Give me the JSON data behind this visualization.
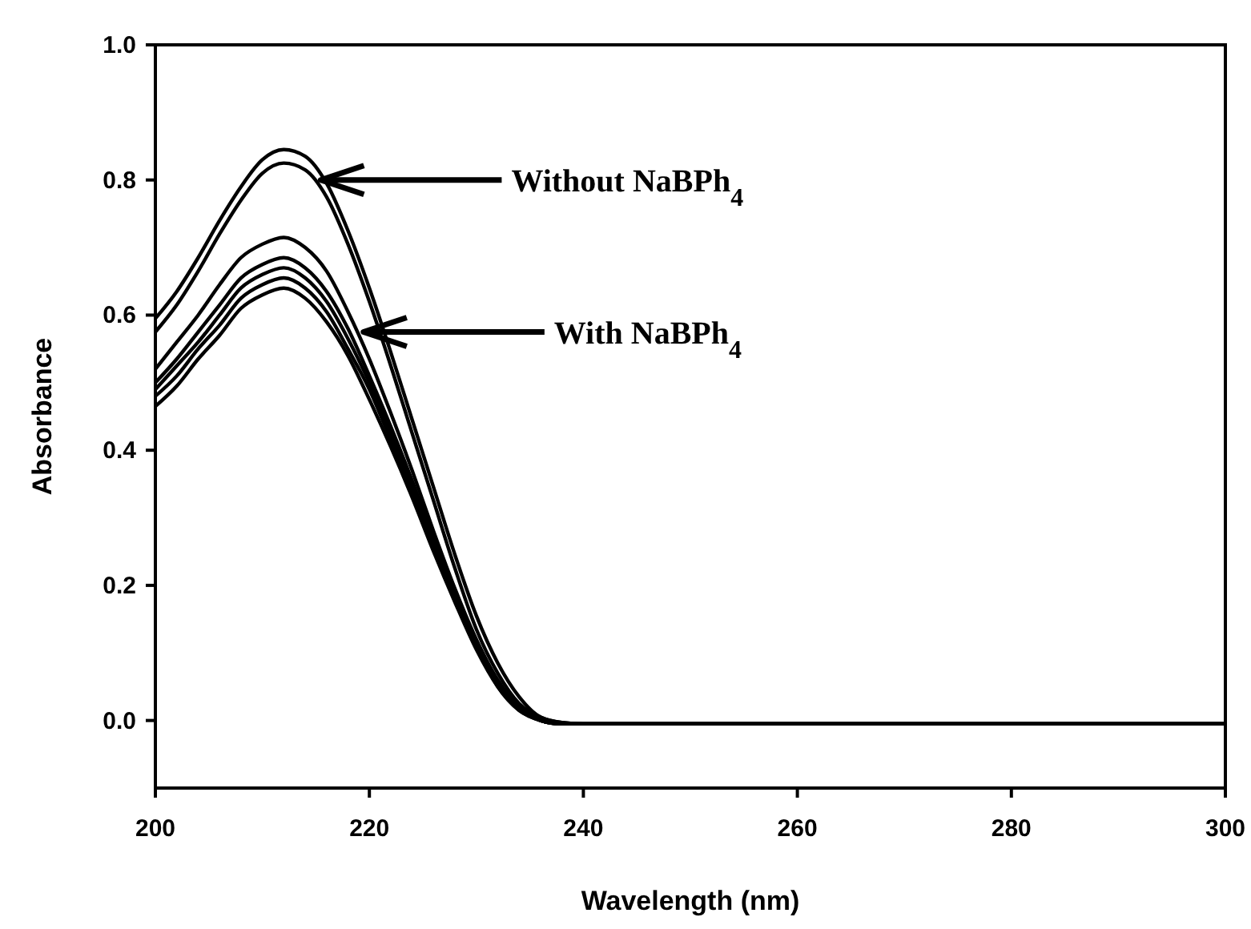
{
  "chart_data": {
    "type": "line",
    "xlabel": "Wavelength (nm)",
    "ylabel": "Absorbance",
    "x": [
      200,
      202,
      204,
      206,
      208,
      210,
      212,
      214,
      216,
      218,
      220,
      222,
      224,
      226,
      228,
      230,
      232,
      234,
      236,
      238,
      240,
      300
    ],
    "series": [
      {
        "color": "#000000",
        "values": [
          0.595,
          0.635,
          0.685,
          0.74,
          0.79,
          0.83,
          0.845,
          0.835,
          0.795,
          0.725,
          0.64,
          0.545,
          0.445,
          0.345,
          0.245,
          0.155,
          0.085,
          0.035,
          0.005,
          -0.003,
          -0.005,
          -0.005
        ]
      },
      {
        "color": "#000000",
        "values": [
          0.575,
          0.615,
          0.665,
          0.72,
          0.77,
          0.81,
          0.825,
          0.815,
          0.775,
          0.705,
          0.62,
          0.525,
          0.425,
          0.325,
          0.225,
          0.135,
          0.07,
          0.025,
          0.005,
          -0.003,
          -0.005,
          -0.005
        ]
      },
      {
        "color": "#000000",
        "values": [
          0.52,
          0.56,
          0.6,
          0.645,
          0.685,
          0.705,
          0.715,
          0.7,
          0.665,
          0.605,
          0.535,
          0.455,
          0.37,
          0.28,
          0.195,
          0.12,
          0.06,
          0.02,
          0.0,
          -0.005,
          -0.005,
          -0.005
        ]
      },
      {
        "color": "#000000",
        "values": [
          0.5,
          0.535,
          0.575,
          0.615,
          0.655,
          0.675,
          0.685,
          0.67,
          0.635,
          0.58,
          0.51,
          0.435,
          0.355,
          0.27,
          0.19,
          0.115,
          0.055,
          0.02,
          0.0,
          -0.005,
          -0.005,
          -0.005
        ]
      },
      {
        "color": "#000000",
        "values": [
          0.49,
          0.525,
          0.56,
          0.6,
          0.64,
          0.66,
          0.67,
          0.655,
          0.62,
          0.565,
          0.5,
          0.425,
          0.345,
          0.265,
          0.185,
          0.11,
          0.055,
          0.02,
          0.0,
          -0.005,
          -0.005,
          -0.005
        ]
      },
      {
        "color": "#000000",
        "values": [
          0.48,
          0.51,
          0.55,
          0.585,
          0.625,
          0.645,
          0.655,
          0.64,
          0.605,
          0.55,
          0.49,
          0.415,
          0.34,
          0.26,
          0.18,
          0.11,
          0.05,
          0.015,
          0.0,
          -0.005,
          -0.005,
          -0.005
        ]
      },
      {
        "color": "#000000",
        "values": [
          0.465,
          0.495,
          0.535,
          0.57,
          0.61,
          0.63,
          0.64,
          0.625,
          0.59,
          0.54,
          0.475,
          0.405,
          0.33,
          0.25,
          0.175,
          0.105,
          0.05,
          0.015,
          0.0,
          -0.005,
          -0.005,
          -0.005
        ]
      }
    ],
    "xlim": [
      200,
      300
    ],
    "xticks": [
      200,
      220,
      240,
      260,
      280,
      300
    ],
    "ylim": [
      -0.1,
      1.0
    ],
    "yticks": [
      {
        "value": 0,
        "label": "0.0"
      },
      0.2,
      0.4,
      0.6,
      0.8,
      {
        "value": 1,
        "label": "1.0"
      }
    ],
    "annotations": [
      {
        "text": "Without NaBPh$_{4}$",
        "x": 215,
        "y": 0.8
      },
      {
        "text": "With NaBPh$_{4}$",
        "x": 219,
        "y": 0.575
      }
    ],
    "grid": false,
    "marker": "none",
    "line_style": "solid"
  }
}
